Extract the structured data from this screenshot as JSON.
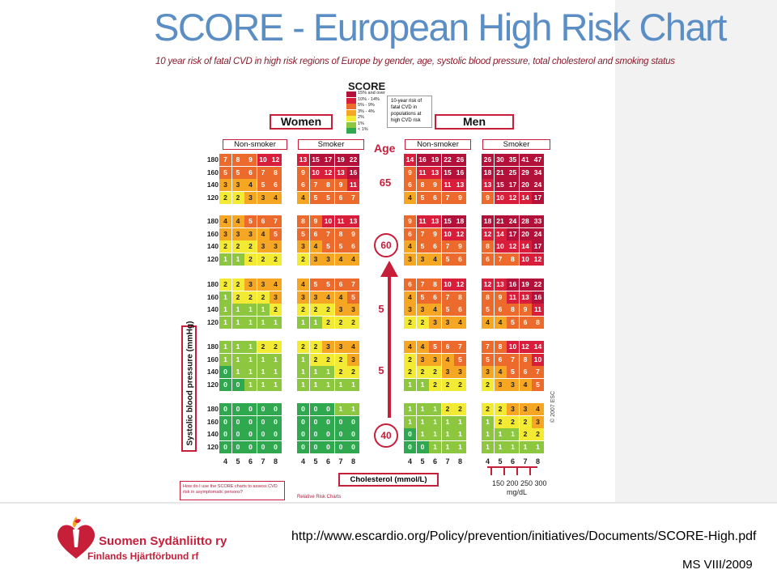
{
  "title": "SCORE - European High Risk Chart",
  "subtitle": "10 year risk of fatal CVD in high risk regions of Europe by gender, age, systolic blood pressure, total cholesterol and smoking status",
  "legend": {
    "logo": "SCORE",
    "items": [
      {
        "label": "15% and over",
        "color": "#b3103a"
      },
      {
        "label": "10% - 14%",
        "color": "#d91e3c"
      },
      {
        "label": "5% - 9%",
        "color": "#ec6a2c"
      },
      {
        "label": "3% - 4%",
        "color": "#f5a623"
      },
      {
        "label": "2%",
        "color": "#f3ea34"
      },
      {
        "label": "1%",
        "color": "#8dc63f"
      },
      {
        "label": "< 1%",
        "color": "#2fa84f"
      }
    ],
    "note_lines": [
      "10-year risk of",
      "fatal CVD in",
      "populations at",
      "high CVD risk"
    ]
  },
  "headers": {
    "women": "Women",
    "men": "Men",
    "non_smoker": "Non-smoker",
    "smoker": "Smoker",
    "age": "Age"
  },
  "chart_data": {
    "type": "heatmap",
    "title": "SCORE - European High Risk Chart",
    "xlabel": "Cholesterol (mmol/L)",
    "ylabel": "Systolic blood pressure (mmHg)",
    "cholesterol_mmol": [
      4,
      5,
      6,
      7,
      8
    ],
    "systolic_bp": [
      180,
      160,
      140,
      120
    ],
    "color_scale": [
      {
        "min": 15,
        "color": "#b3103a"
      },
      {
        "min": 10,
        "color": "#d91e3c"
      },
      {
        "min": 5,
        "color": "#ec6a2c"
      },
      {
        "min": 3,
        "color": "#f5a623"
      },
      {
        "min": 2,
        "color": "#f3ea34"
      },
      {
        "min": 1,
        "color": "#8dc63f"
      },
      {
        "min": 0,
        "color": "#2fa84f"
      }
    ],
    "ages": [
      {
        "age": "65",
        "women_nonsmoker": [
          [
            7,
            8,
            9,
            10,
            12
          ],
          [
            5,
            5,
            6,
            7,
            8
          ],
          [
            3,
            3,
            4,
            5,
            6
          ],
          [
            2,
            2,
            3,
            3,
            4
          ]
        ],
        "women_smoker": [
          [
            13,
            15,
            17,
            19,
            22
          ],
          [
            9,
            10,
            12,
            13,
            16
          ],
          [
            6,
            7,
            8,
            9,
            11
          ],
          [
            4,
            5,
            5,
            6,
            7
          ]
        ],
        "men_nonsmoker": [
          [
            14,
            16,
            19,
            22,
            26
          ],
          [
            9,
            11,
            13,
            15,
            16
          ],
          [
            6,
            8,
            9,
            11,
            13
          ],
          [
            4,
            5,
            6,
            7,
            9
          ]
        ],
        "men_smoker": [
          [
            26,
            30,
            35,
            41,
            47
          ],
          [
            18,
            21,
            25,
            29,
            34
          ],
          [
            13,
            15,
            17,
            20,
            24
          ],
          [
            9,
            10,
            12,
            14,
            17
          ]
        ]
      },
      {
        "age": "60",
        "women_nonsmoker": [
          [
            4,
            4,
            5,
            6,
            7
          ],
          [
            3,
            3,
            3,
            4,
            5
          ],
          [
            2,
            2,
            2,
            3,
            3
          ],
          [
            1,
            1,
            2,
            2,
            2
          ]
        ],
        "women_smoker": [
          [
            8,
            9,
            10,
            11,
            13
          ],
          [
            5,
            6,
            7,
            8,
            9
          ],
          [
            3,
            4,
            5,
            5,
            6
          ],
          [
            2,
            3,
            3,
            4,
            4
          ]
        ],
        "men_nonsmoker": [
          [
            9,
            11,
            13,
            15,
            18
          ],
          [
            6,
            7,
            9,
            10,
            12
          ],
          [
            4,
            5,
            6,
            7,
            9
          ],
          [
            3,
            3,
            4,
            5,
            6
          ]
        ],
        "men_smoker": [
          [
            18,
            21,
            24,
            28,
            33
          ],
          [
            12,
            14,
            17,
            20,
            24
          ],
          [
            8,
            10,
            12,
            14,
            17
          ],
          [
            6,
            7,
            8,
            10,
            12
          ]
        ]
      },
      {
        "age": "5",
        "women_nonsmoker": [
          [
            2,
            2,
            3,
            3,
            4
          ],
          [
            1,
            2,
            2,
            2,
            3
          ],
          [
            1,
            1,
            1,
            1,
            2
          ],
          [
            1,
            1,
            1,
            1,
            1
          ]
        ],
        "women_smoker": [
          [
            4,
            5,
            5,
            6,
            7
          ],
          [
            3,
            3,
            4,
            4,
            5
          ],
          [
            2,
            2,
            2,
            3,
            3
          ],
          [
            1,
            1,
            2,
            2,
            2
          ]
        ],
        "men_nonsmoker": [
          [
            6,
            7,
            8,
            10,
            12
          ],
          [
            4,
            5,
            6,
            7,
            8
          ],
          [
            3,
            3,
            4,
            5,
            6
          ],
          [
            2,
            2,
            3,
            3,
            4
          ]
        ],
        "men_smoker": [
          [
            12,
            13,
            16,
            19,
            22
          ],
          [
            8,
            9,
            11,
            13,
            16
          ],
          [
            5,
            6,
            8,
            9,
            11
          ],
          [
            4,
            4,
            5,
            6,
            8
          ]
        ]
      },
      {
        "age": "5",
        "women_nonsmoker": [
          [
            1,
            1,
            1,
            2,
            2
          ],
          [
            1,
            1,
            1,
            1,
            1
          ],
          [
            0,
            1,
            1,
            1,
            1
          ],
          [
            0,
            0,
            1,
            1,
            1
          ]
        ],
        "women_smoker": [
          [
            2,
            2,
            3,
            3,
            4
          ],
          [
            1,
            2,
            2,
            2,
            3
          ],
          [
            1,
            1,
            1,
            2,
            2
          ],
          [
            1,
            1,
            1,
            1,
            1
          ]
        ],
        "men_nonsmoker": [
          [
            4,
            4,
            5,
            6,
            7
          ],
          [
            2,
            3,
            3,
            4,
            5
          ],
          [
            2,
            2,
            2,
            3,
            3
          ],
          [
            1,
            1,
            2,
            2,
            2
          ]
        ],
        "men_smoker": [
          [
            7,
            8,
            10,
            12,
            14
          ],
          [
            5,
            6,
            7,
            8,
            10
          ],
          [
            3,
            4,
            5,
            6,
            7
          ],
          [
            2,
            3,
            3,
            4,
            5
          ]
        ]
      },
      {
        "age": "40",
        "women_nonsmoker": [
          [
            0,
            0,
            0,
            0,
            0
          ],
          [
            0,
            0,
            0,
            0,
            0
          ],
          [
            0,
            0,
            0,
            0,
            0
          ],
          [
            0,
            0,
            0,
            0,
            0
          ]
        ],
        "women_smoker": [
          [
            0,
            0,
            0,
            1,
            1
          ],
          [
            0,
            0,
            0,
            0,
            0
          ],
          [
            0,
            0,
            0,
            0,
            0
          ],
          [
            0,
            0,
            0,
            0,
            0
          ]
        ],
        "men_nonsmoker": [
          [
            1,
            1,
            1,
            2,
            2
          ],
          [
            1,
            1,
            1,
            1,
            1
          ],
          [
            0,
            1,
            1,
            1,
            1
          ],
          [
            0,
            0,
            1,
            1,
            1
          ]
        ],
        "men_smoker": [
          [
            2,
            2,
            3,
            3,
            4
          ],
          [
            1,
            2,
            2,
            2,
            3
          ],
          [
            1,
            1,
            1,
            2,
            2
          ],
          [
            1,
            1,
            1,
            1,
            1
          ]
        ]
      }
    ]
  },
  "mgdl_label": "150 200 250 300",
  "mgdl_unit": "mg/dL",
  "copyright": "© 2007 ESC",
  "howdo": "How do I use the SCORE charts to assess CVD risk in asymptomatic persons?",
  "relative_risk": "Relative Risk Charts",
  "url": "http://www.escardio.org/Policy/prevention/initiatives/Documents/SCORE-High.pdf",
  "org_name": "Suomen Sydänliitto ry",
  "org_name_sv": "Finlands Hjärtförbund rf",
  "footer_code": "MS VIII/2009"
}
